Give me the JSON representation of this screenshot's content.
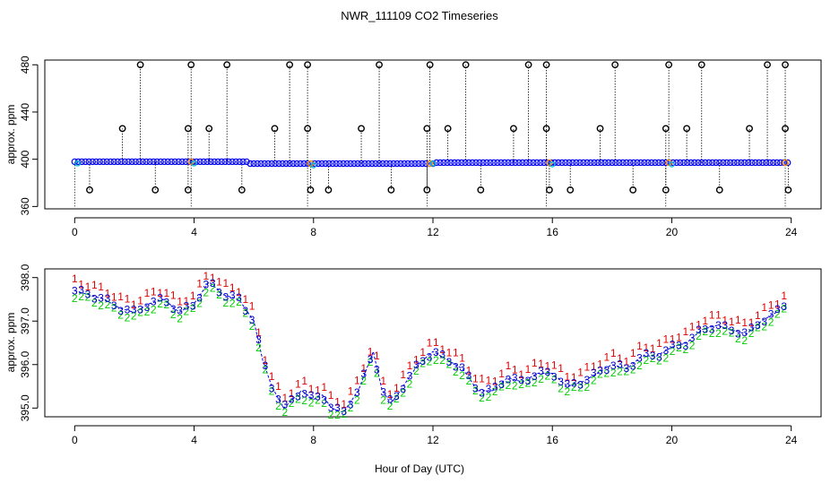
{
  "figure": {
    "title": "NWR_111109  CO2 Timeseries",
    "xlabel": "Hour of Day (UTC)"
  },
  "colors": {
    "raw_points": "#000000",
    "flag_orange": "#ff9900",
    "smooth_blue": "#0000ee",
    "cyan": "#00bbdd",
    "series1": "#e00000",
    "series2": "#00cc00",
    "series3": "#0000cc"
  },
  "chart_data": [
    {
      "type": "scatter",
      "name": "top-panel",
      "ylabel": "approx. ppm",
      "xlim": [
        -1,
        25
      ],
      "ylim": [
        358,
        484
      ],
      "xticks": [
        0,
        4,
        8,
        12,
        16,
        20,
        24
      ],
      "yticks": [
        360,
        400,
        440,
        480
      ],
      "baseline_level": 397.5,
      "spikes_high": [
        {
          "x": 1.6,
          "y": 426
        },
        {
          "x": 2.2,
          "y": 480
        },
        {
          "x": 3.8,
          "y": 426
        },
        {
          "x": 3.9,
          "y": 480
        },
        {
          "x": 4.5,
          "y": 426
        },
        {
          "x": 5.1,
          "y": 480
        },
        {
          "x": 6.7,
          "y": 426
        },
        {
          "x": 7.2,
          "y": 480
        },
        {
          "x": 7.8,
          "y": 480
        },
        {
          "x": 7.8,
          "y": 426
        },
        {
          "x": 9.6,
          "y": 426
        },
        {
          "x": 10.2,
          "y": 480
        },
        {
          "x": 11.8,
          "y": 426
        },
        {
          "x": 11.9,
          "y": 480
        },
        {
          "x": 12.5,
          "y": 426
        },
        {
          "x": 13.1,
          "y": 480
        },
        {
          "x": 14.7,
          "y": 426
        },
        {
          "x": 15.2,
          "y": 480
        },
        {
          "x": 15.8,
          "y": 480
        },
        {
          "x": 15.8,
          "y": 426
        },
        {
          "x": 17.6,
          "y": 426
        },
        {
          "x": 18.1,
          "y": 480
        },
        {
          "x": 19.8,
          "y": 426
        },
        {
          "x": 19.9,
          "y": 480
        },
        {
          "x": 20.5,
          "y": 426
        },
        {
          "x": 21.0,
          "y": 480
        },
        {
          "x": 22.6,
          "y": 426
        },
        {
          "x": 23.2,
          "y": 480
        },
        {
          "x": 23.8,
          "y": 480
        },
        {
          "x": 23.8,
          "y": 426
        }
      ],
      "spikes_low": [
        {
          "x": 0.5,
          "y": 374
        },
        {
          "x": 2.7,
          "y": 374
        },
        {
          "x": 3.8,
          "y": 374
        },
        {
          "x": 5.6,
          "y": 374
        },
        {
          "x": 7.9,
          "y": 374
        },
        {
          "x": 8.5,
          "y": 374
        },
        {
          "x": 10.6,
          "y": 374
        },
        {
          "x": 11.8,
          "y": 374
        },
        {
          "x": 13.6,
          "y": 374
        },
        {
          "x": 15.9,
          "y": 374
        },
        {
          "x": 16.6,
          "y": 374
        },
        {
          "x": 18.7,
          "y": 374
        },
        {
          "x": 19.8,
          "y": 374
        },
        {
          "x": 21.6,
          "y": 374
        },
        {
          "x": 23.9,
          "y": 374
        }
      ]
    },
    {
      "type": "line",
      "name": "bottom-panel",
      "ylabel": "approx. ppm",
      "xlabel": "Hour of Day (UTC)",
      "xlim": [
        -1,
        25
      ],
      "ylim": [
        394.8,
        398.2
      ],
      "xticks": [
        0,
        4,
        8,
        12,
        16,
        20,
        24
      ],
      "yticks": [
        395.0,
        396.0,
        397.0,
        398.0
      ],
      "series": [
        {
          "name": "1",
          "offset": 0.22
        },
        {
          "name": "2",
          "offset": -0.12
        },
        {
          "name": "3",
          "offset": 0.0
        }
      ],
      "x": [
        0.0,
        0.5,
        1.0,
        1.5,
        2.0,
        2.5,
        3.0,
        3.5,
        4.0,
        4.5,
        5.0,
        5.5,
        6.0,
        6.3,
        6.6,
        7.0,
        7.3,
        7.6,
        8.0,
        8.3,
        8.6,
        9.0,
        9.5,
        10.0,
        10.3,
        10.6,
        11.0,
        11.5,
        12.0,
        12.5,
        13.0,
        13.5,
        14.0,
        14.5,
        15.0,
        15.5,
        16.0,
        16.5,
        17.0,
        17.5,
        18.0,
        18.5,
        19.0,
        19.5,
        20.0,
        20.5,
        21.0,
        21.5,
        22.0,
        22.5,
        23.0,
        23.5,
        23.8
      ],
      "values": [
        397.7,
        397.6,
        397.5,
        397.3,
        397.2,
        397.4,
        397.5,
        397.2,
        397.4,
        397.9,
        397.6,
        397.5,
        397.0,
        396.1,
        395.5,
        395.0,
        395.2,
        395.4,
        395.2,
        395.3,
        395.0,
        394.9,
        395.4,
        396.3,
        395.4,
        395.1,
        395.5,
        396.0,
        396.3,
        396.1,
        395.9,
        395.4,
        395.4,
        395.7,
        395.6,
        395.8,
        395.8,
        395.5,
        395.6,
        395.8,
        396.0,
        395.9,
        396.2,
        396.2,
        396.4,
        396.5,
        396.8,
        396.9,
        396.8,
        396.7,
        397.0,
        397.2,
        397.4
      ]
    }
  ]
}
